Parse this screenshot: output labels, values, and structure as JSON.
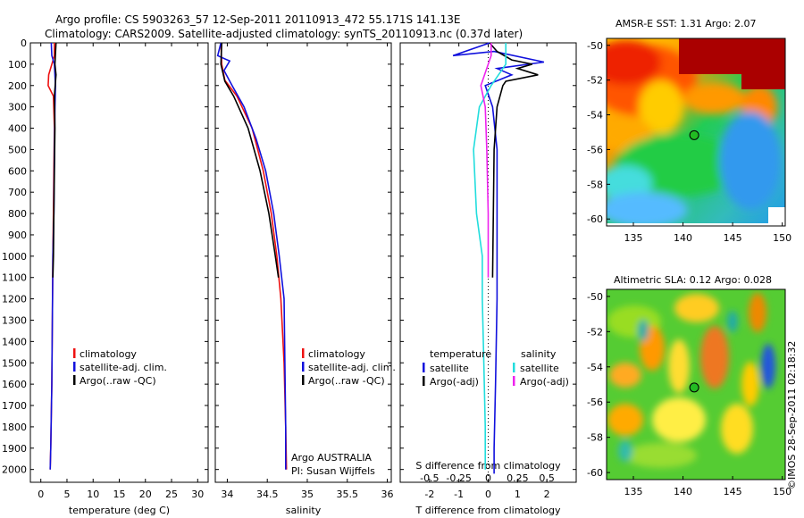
{
  "title_line1": "Argo profile: CS 5903263_57 12-Sep-2011 20110913_472 55.171S 141.13E",
  "title_line2": "Climatology: CARS2009. Satellite-adjusted climatology: synTS_20110913.nc (0.37d later)",
  "side_stamp": "©IMOS 28-Sep-2011 02:18:32",
  "colors": {
    "climatology": "#ee1111",
    "satellite": "#1111dd",
    "argo": "#000000",
    "sal_satellite": "#22dddd",
    "sal_argo": "#ee22ee",
    "marker": "#22bb22"
  },
  "chart_data": [
    {
      "type": "line",
      "xlabel": "temperature (deg C)",
      "xlim": [
        -2,
        32
      ],
      "xticks": [
        0,
        5,
        10,
        15,
        20,
        25,
        30
      ],
      "ylim": [
        2060,
        0
      ],
      "yticks": [
        0,
        100,
        200,
        300,
        400,
        500,
        600,
        700,
        800,
        900,
        1000,
        1100,
        1200,
        1300,
        1400,
        1500,
        1600,
        1700,
        1800,
        1900,
        2000
      ],
      "legend": [
        "climatology",
        "satellite-adj. clim.",
        "Argo(..raw -QC)"
      ],
      "series": [
        {
          "name": "climatology",
          "color": "#ee1111",
          "x": [
            2.6,
            2.6,
            1.5,
            1.4,
            2.4,
            2.6,
            2.5,
            2.4,
            2.3,
            2.2,
            2.1,
            1.9,
            1.8
          ],
          "y": [
            0,
            60,
            150,
            200,
            250,
            400,
            600,
            800,
            1000,
            1300,
            1600,
            1900,
            2000
          ]
        },
        {
          "name": "satellite-adj. clim.",
          "color": "#1111dd",
          "x": [
            2.0,
            2.1,
            2.6,
            2.8,
            2.7,
            2.6,
            2.5,
            2.3,
            2.2,
            2.1,
            1.9,
            1.8
          ],
          "y": [
            0,
            60,
            100,
            200,
            300,
            500,
            800,
            1000,
            1300,
            1600,
            1900,
            2000
          ]
        },
        {
          "name": "Argo(..raw -QC)",
          "color": "#000000",
          "x": [
            2.9,
            2.7,
            2.9,
            2.6,
            2.7,
            2.6,
            2.5,
            2.4,
            2.3
          ],
          "y": [
            0,
            100,
            150,
            250,
            400,
            600,
            800,
            1000,
            1100
          ]
        }
      ]
    },
    {
      "type": "line",
      "xlabel": "salinity",
      "xlim": [
        33.85,
        36.05
      ],
      "xticks": [
        34,
        34.5,
        35,
        35.5,
        36
      ],
      "xticklabels": [
        "34",
        "34.5",
        "35",
        "35.5",
        "36"
      ],
      "ylim": [
        2060,
        0
      ],
      "yticks": [
        0,
        100,
        200,
        300,
        400,
        500,
        600,
        700,
        800,
        900,
        1000,
        1100,
        1200,
        1300,
        1400,
        1500,
        1600,
        1700,
        1800,
        1900,
        2000
      ],
      "legend": [
        "climatology",
        "satellite-adj. clim.",
        "Argo(..raw -QC)"
      ],
      "annotation": [
        "Argo AUSTRALIA",
        "PI: Susan Wijffels"
      ],
      "series": [
        {
          "name": "climatology",
          "color": "#ee1111",
          "x": [
            33.92,
            33.93,
            33.97,
            34.12,
            34.31,
            34.45,
            34.55,
            34.62,
            34.67,
            34.71,
            34.73,
            34.74
          ],
          "y": [
            0,
            100,
            175,
            250,
            400,
            600,
            800,
            1000,
            1200,
            1500,
            1800,
            2000
          ]
        },
        {
          "name": "satellite-adj. clim.",
          "color": "#1111dd",
          "x": [
            33.92,
            33.88,
            34.03,
            33.96,
            34.06,
            34.21,
            34.36,
            34.48,
            34.58,
            34.65,
            34.71,
            34.72,
            34.73,
            34.73
          ],
          "y": [
            0,
            60,
            85,
            130,
            200,
            300,
            450,
            600,
            800,
            1000,
            1200,
            1500,
            1800,
            2000
          ]
        },
        {
          "name": "Argo(..raw -QC)",
          "color": "#000000",
          "x": [
            33.93,
            33.92,
            33.97,
            34.08,
            34.26,
            34.41,
            34.52,
            34.6,
            34.64
          ],
          "y": [
            0,
            100,
            180,
            250,
            400,
            600,
            800,
            1000,
            1100
          ]
        }
      ]
    },
    {
      "type": "line",
      "xlabel": "T difference from climatology",
      "xlabel_top": "S difference from climatology",
      "xlim": [
        -3.0,
        3.0
      ],
      "xticks": [
        -2,
        -1,
        0,
        1,
        2
      ],
      "xticks_top": [
        -0.5,
        -0.25,
        0,
        0.25,
        0.5
      ],
      "ylim": [
        2060,
        0
      ],
      "yticks": [
        0,
        100,
        200,
        300,
        400,
        500,
        600,
        700,
        800,
        900,
        1000,
        1100,
        1200,
        1300,
        1400,
        1500,
        1600,
        1700,
        1800,
        1900,
        2000
      ],
      "legend_headers": [
        "temperature",
        "salinity"
      ],
      "legend": [
        "satellite",
        "Argo(-adj)",
        "satellite",
        "Argo(-adj)"
      ],
      "series": [
        {
          "name": "satellite",
          "color": "#1111dd",
          "x": [
            0.05,
            -1.2,
            0.2,
            1.9,
            0.3,
            0.8,
            -0.1,
            0.15,
            0.3,
            0.3,
            0.3,
            0.25,
            0.2,
            0.2,
            0.2
          ],
          "y": [
            0,
            60,
            40,
            90,
            120,
            150,
            200,
            300,
            500,
            800,
            1200,
            1600,
            1900,
            2000,
            2020
          ]
        },
        {
          "name": "Argo(-adj)",
          "color": "#000000",
          "x": [
            0.05,
            0.3,
            0.8,
            1.5,
            1.0,
            1.7,
            0.6,
            0.5,
            0.3,
            0.2,
            0.15
          ],
          "y": [
            0,
            40,
            80,
            100,
            120,
            150,
            180,
            200,
            300,
            500,
            1100
          ]
        },
        {
          "name": "satellite",
          "color": "#22dddd",
          "x": [
            0.6,
            0.6,
            0.1,
            -0.3,
            -0.5,
            -0.4,
            -0.2,
            -0.2,
            -0.15,
            -0.1,
            -0.1,
            -0.1
          ],
          "y": [
            0,
            100,
            200,
            300,
            500,
            800,
            1000,
            1200,
            1500,
            1800,
            1900,
            2000
          ]
        },
        {
          "name": "Argo(-adj)",
          "color": "#ee22ee",
          "x": [
            0.1,
            0.1,
            -0.25,
            -0.1,
            -0.05,
            0.0,
            0.0
          ],
          "y": [
            0,
            60,
            200,
            300,
            500,
            800,
            1100
          ]
        }
      ]
    },
    {
      "type": "heatmap",
      "title": "AMSR-E SST: 1.31  Argo: 2.07",
      "xticks": [
        135,
        140,
        145,
        150
      ],
      "yticks": [
        -50,
        -52,
        -54,
        -56,
        -58,
        -60
      ],
      "xlim": [
        132.3,
        150.3
      ],
      "ylim": [
        -60.4,
        -49.6
      ],
      "marker": {
        "lon": 141.13,
        "lat": -55.171
      }
    },
    {
      "type": "heatmap",
      "title": "Altimetric SLA: 0.12  Argo: 0.028",
      "xticks": [
        135,
        140,
        145,
        150
      ],
      "yticks": [
        -50,
        -52,
        -54,
        -56,
        -58,
        -60
      ],
      "xlim": [
        132.3,
        150.3
      ],
      "ylim": [
        -60.4,
        -49.6
      ],
      "marker": {
        "lon": 141.13,
        "lat": -55.171
      }
    }
  ]
}
